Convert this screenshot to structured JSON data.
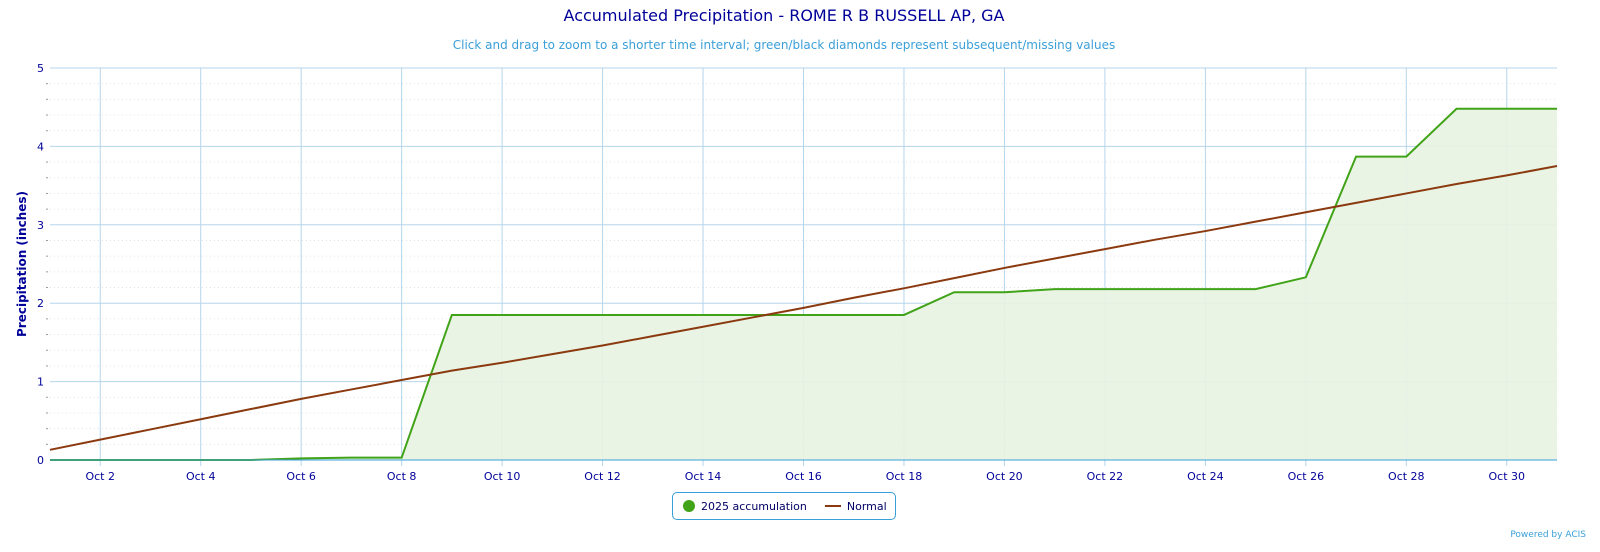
{
  "chart_data": {
    "type": "area",
    "title": "Accumulated Precipitation - ROME R B RUSSELL AP, GA",
    "subtitle": "Click and drag to zoom to a shorter time interval; green/black diamonds represent subsequent/missing values",
    "xlabel": "",
    "ylabel": "Precipitation (inches)",
    "ylim": [
      0,
      5
    ],
    "yticks": [
      "0",
      "1",
      "2",
      "3",
      "4",
      "5"
    ],
    "xticks": [
      "Oct 2",
      "Oct 4",
      "Oct 6",
      "Oct 8",
      "Oct 10",
      "Oct 12",
      "Oct 14",
      "Oct 16",
      "Oct 18",
      "Oct 20",
      "Oct 22",
      "Oct 24",
      "Oct 26",
      "Oct 28",
      "Oct 30"
    ],
    "x_days": [
      1,
      2,
      3,
      4,
      5,
      6,
      7,
      8,
      9,
      10,
      11,
      12,
      13,
      14,
      15,
      16,
      17,
      18,
      19,
      20,
      21,
      22,
      23,
      24,
      25,
      26,
      27,
      28,
      29,
      30,
      31
    ],
    "grid": true,
    "legend_position": "bottom-center",
    "series": [
      {
        "name": "2025 accumulation",
        "color": "#41a317",
        "fill": "#e8f3e2",
        "values": [
          0,
          0,
          0,
          0,
          0,
          0.02,
          0.03,
          0.03,
          1.85,
          1.85,
          1.85,
          1.85,
          1.85,
          1.85,
          1.85,
          1.85,
          1.85,
          1.85,
          2.14,
          2.14,
          2.18,
          2.18,
          2.18,
          2.18,
          2.18,
          2.33,
          3.87,
          3.87,
          4.48,
          4.48,
          4.48
        ]
      },
      {
        "name": "Normal",
        "color": "#8b3a0f",
        "values": [
          0.13,
          0.26,
          0.39,
          0.52,
          0.65,
          0.78,
          0.9,
          1.02,
          1.14,
          1.24,
          1.35,
          1.46,
          1.58,
          1.7,
          1.82,
          1.94,
          2.07,
          2.19,
          2.32,
          2.45,
          2.57,
          2.69,
          2.81,
          2.92,
          3.04,
          3.16,
          3.28,
          3.4,
          3.52,
          3.63,
          3.75
        ]
      }
    ]
  },
  "credits": "Powered by ACIS"
}
